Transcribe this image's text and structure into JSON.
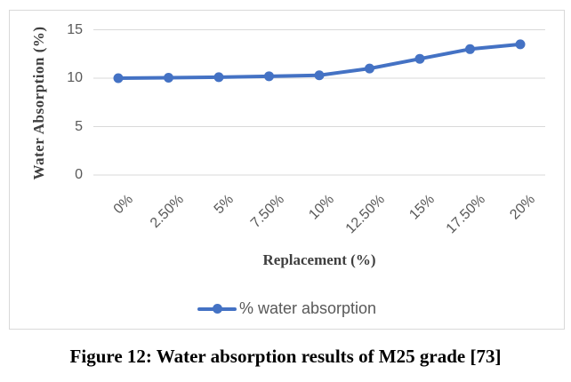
{
  "chart_data": {
    "type": "line",
    "categories": [
      "0%",
      "2.50%",
      "5%",
      "7.50%",
      "10%",
      "12.50%",
      "15%",
      "17.50%",
      "20%"
    ],
    "series": [
      {
        "name": "% water absorption",
        "values": [
          10,
          10.05,
          10.1,
          10.2,
          10.3,
          11,
          12,
          13,
          13.5
        ]
      }
    ],
    "xlabel": "Replacement (%)",
    "ylabel": "Water Absorption (%)",
    "yticks": [
      0,
      5,
      10,
      15
    ],
    "ylim": [
      0,
      16.8
    ],
    "grid": "horizontal",
    "legend_position": "bottom"
  },
  "figure": {
    "caption": "Figure 12: Water absorption results of M25 grade [73]"
  },
  "colors": {
    "line": "#4472C4",
    "marker": "#4472C4",
    "grid": "#D9D9D9",
    "border": "#D9D9D9",
    "tick_text": "#595959",
    "axis_title_text": "#3F3F3F",
    "caption_text": "#000000"
  }
}
